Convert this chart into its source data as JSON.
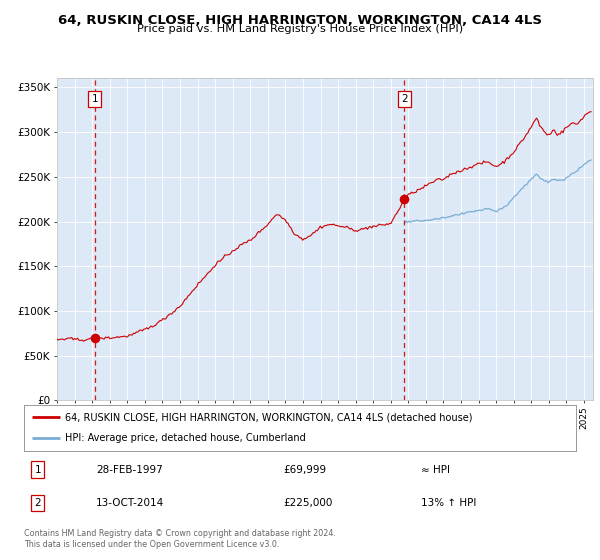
{
  "title1": "64, RUSKIN CLOSE, HIGH HARRINGTON, WORKINGTON, CA14 4LS",
  "title2": "Price paid vs. HM Land Registry's House Price Index (HPI)",
  "legend_line1": "64, RUSKIN CLOSE, HIGH HARRINGTON, WORKINGTON, CA14 4LS (detached house)",
  "legend_line2": "HPI: Average price, detached house, Cumberland",
  "annotation1_label": "1",
  "annotation1_date": "28-FEB-1997",
  "annotation1_price": "£69,999",
  "annotation1_hpi": "≈ HPI",
  "annotation2_label": "2",
  "annotation2_date": "13-OCT-2014",
  "annotation2_price": "£225,000",
  "annotation2_hpi": "13% ↑ HPI",
  "footer": "Contains HM Land Registry data © Crown copyright and database right 2024.\nThis data is licensed under the Open Government Licence v3.0.",
  "sale1_year": 1997.15,
  "sale1_value": 69999,
  "sale2_year": 2014.78,
  "sale2_value": 225000,
  "bg_color": "#dde9f7",
  "red_color": "#cc0000",
  "blue_color": "#7aadd4",
  "dashed_color": "#cc0000",
  "ylim_min": 0,
  "ylim_max": 360000,
  "xlim_min": 1995,
  "xlim_max": 2025.5,
  "red_anchors": [
    [
      1995.0,
      68000
    ],
    [
      1996.0,
      67500
    ],
    [
      1997.15,
      69999
    ],
    [
      1998.0,
      72000
    ],
    [
      1999.0,
      75000
    ],
    [
      2000.0,
      82000
    ],
    [
      2001.0,
      92000
    ],
    [
      2002.0,
      108000
    ],
    [
      2003.0,
      132000
    ],
    [
      2004.0,
      155000
    ],
    [
      2005.0,
      170000
    ],
    [
      2006.0,
      182000
    ],
    [
      2007.0,
      200000
    ],
    [
      2007.5,
      212000
    ],
    [
      2008.0,
      205000
    ],
    [
      2008.5,
      190000
    ],
    [
      2009.0,
      182000
    ],
    [
      2009.5,
      188000
    ],
    [
      2010.0,
      195000
    ],
    [
      2010.5,
      198000
    ],
    [
      2011.0,
      197000
    ],
    [
      2011.5,
      195000
    ],
    [
      2012.0,
      192000
    ],
    [
      2012.5,
      193000
    ],
    [
      2013.0,
      194000
    ],
    [
      2013.5,
      196000
    ],
    [
      2014.0,
      198000
    ],
    [
      2014.78,
      225000
    ],
    [
      2015.0,
      230000
    ],
    [
      2015.5,
      235000
    ],
    [
      2016.0,
      240000
    ],
    [
      2016.5,
      245000
    ],
    [
      2017.0,
      248000
    ],
    [
      2017.5,
      255000
    ],
    [
      2018.0,
      258000
    ],
    [
      2018.5,
      262000
    ],
    [
      2019.0,
      265000
    ],
    [
      2019.5,
      268000
    ],
    [
      2020.0,
      262000
    ],
    [
      2020.5,
      268000
    ],
    [
      2021.0,
      278000
    ],
    [
      2021.5,
      290000
    ],
    [
      2022.0,
      305000
    ],
    [
      2022.3,
      315000
    ],
    [
      2022.5,
      305000
    ],
    [
      2022.8,
      298000
    ],
    [
      2023.0,
      295000
    ],
    [
      2023.3,
      302000
    ],
    [
      2023.5,
      296000
    ],
    [
      2023.8,
      300000
    ],
    [
      2024.0,
      305000
    ],
    [
      2024.3,
      310000
    ],
    [
      2024.6,
      308000
    ],
    [
      2025.0,
      318000
    ],
    [
      2025.3,
      322000
    ]
  ],
  "blue_anchors": [
    [
      2014.78,
      199000
    ],
    [
      2015.0,
      200000
    ],
    [
      2015.5,
      200500
    ],
    [
      2016.0,
      202000
    ],
    [
      2016.5,
      203000
    ],
    [
      2017.0,
      205000
    ],
    [
      2017.5,
      208000
    ],
    [
      2018.0,
      210000
    ],
    [
      2018.5,
      213000
    ],
    [
      2019.0,
      215000
    ],
    [
      2019.5,
      217000
    ],
    [
      2020.0,
      214000
    ],
    [
      2020.5,
      218000
    ],
    [
      2021.0,
      228000
    ],
    [
      2021.5,
      238000
    ],
    [
      2022.0,
      248000
    ],
    [
      2022.3,
      254000
    ],
    [
      2022.5,
      250000
    ],
    [
      2022.8,
      246000
    ],
    [
      2023.0,
      245000
    ],
    [
      2023.3,
      248000
    ],
    [
      2023.5,
      246000
    ],
    [
      2023.8,
      247000
    ],
    [
      2024.0,
      250000
    ],
    [
      2024.3,
      255000
    ],
    [
      2024.6,
      258000
    ],
    [
      2025.0,
      265000
    ],
    [
      2025.3,
      270000
    ]
  ]
}
